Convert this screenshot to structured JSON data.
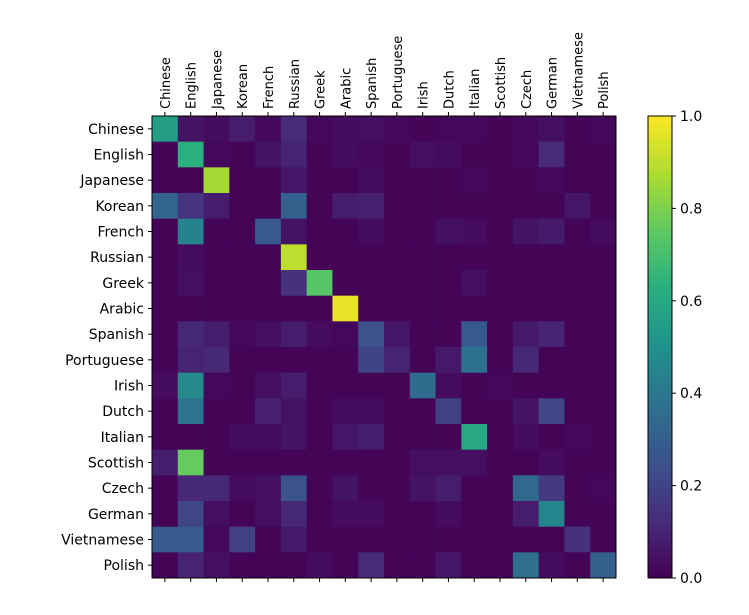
{
  "chart_data": {
    "type": "heatmap",
    "title": "",
    "xlabel": "",
    "ylabel": "",
    "x_labels": [
      "Chinese",
      "English",
      "Japanese",
      "Korean",
      "French",
      "Russian",
      "Greek",
      "Arabic",
      "Spanish",
      "Portuguese",
      "Irish",
      "Dutch",
      "Italian",
      "Scottish",
      "Czech",
      "German",
      "Vietnamese",
      "Polish"
    ],
    "y_labels": [
      "Chinese",
      "English",
      "Japanese",
      "Korean",
      "French",
      "Russian",
      "Greek",
      "Arabic",
      "Spanish",
      "Portuguese",
      "Irish",
      "Dutch",
      "Italian",
      "Scottish",
      "Czech",
      "German",
      "Vietnamese",
      "Polish"
    ],
    "colormap": "viridis",
    "value_range": [
      0,
      1
    ],
    "colorbar_ticks": [
      "0.0",
      "0.2",
      "0.4",
      "0.6",
      "0.8",
      "1.0"
    ],
    "matrix": [
      [
        0.56,
        0.05,
        0.03,
        0.08,
        0.02,
        0.12,
        0.02,
        0.03,
        0.04,
        0.02,
        0.01,
        0.02,
        0.02,
        0.01,
        0.02,
        0.04,
        0.01,
        0.02
      ],
      [
        0.01,
        0.63,
        0.02,
        0.01,
        0.05,
        0.1,
        0.01,
        0.03,
        0.02,
        0.01,
        0.04,
        0.03,
        0.01,
        0.01,
        0.02,
        0.12,
        0.01,
        0.01
      ],
      [
        0.01,
        0.01,
        0.86,
        0.01,
        0.01,
        0.06,
        0.01,
        0.01,
        0.03,
        0.01,
        0.01,
        0.01,
        0.02,
        0.01,
        0.01,
        0.02,
        0.01,
        0.01
      ],
      [
        0.32,
        0.15,
        0.08,
        0.01,
        0.01,
        0.3,
        0.01,
        0.08,
        0.09,
        0.01,
        0.01,
        0.01,
        0.01,
        0.01,
        0.01,
        0.01,
        0.06,
        0.01
      ],
      [
        0.01,
        0.44,
        0.01,
        0.01,
        0.28,
        0.05,
        0.01,
        0.01,
        0.03,
        0.01,
        0.01,
        0.04,
        0.03,
        0.01,
        0.05,
        0.07,
        0.01,
        0.03
      ],
      [
        0.01,
        0.03,
        0.01,
        0.01,
        0.01,
        0.9,
        0.01,
        0.01,
        0.01,
        0.01,
        0.01,
        0.01,
        0.01,
        0.01,
        0.01,
        0.01,
        0.01,
        0.01
      ],
      [
        0.01,
        0.04,
        0.01,
        0.01,
        0.01,
        0.14,
        0.73,
        0.01,
        0.01,
        0.01,
        0.01,
        0.01,
        0.04,
        0.01,
        0.01,
        0.01,
        0.01,
        0.01
      ],
      [
        0.01,
        0.01,
        0.01,
        0.01,
        0.01,
        0.01,
        0.01,
        0.97,
        0.01,
        0.01,
        0.01,
        0.01,
        0.01,
        0.01,
        0.01,
        0.01,
        0.01,
        0.01
      ],
      [
        0.01,
        0.11,
        0.08,
        0.02,
        0.04,
        0.08,
        0.03,
        0.02,
        0.25,
        0.06,
        0.01,
        0.01,
        0.28,
        0.01,
        0.07,
        0.1,
        0.01,
        0.01
      ],
      [
        0.01,
        0.1,
        0.11,
        0.01,
        0.01,
        0.01,
        0.01,
        0.01,
        0.2,
        0.1,
        0.01,
        0.07,
        0.37,
        0.01,
        0.11,
        0.01,
        0.01,
        0.01
      ],
      [
        0.03,
        0.47,
        0.02,
        0.01,
        0.04,
        0.08,
        0.01,
        0.01,
        0.01,
        0.01,
        0.35,
        0.03,
        0.01,
        0.02,
        0.01,
        0.01,
        0.01,
        0.01
      ],
      [
        0.01,
        0.38,
        0.01,
        0.01,
        0.09,
        0.05,
        0.01,
        0.03,
        0.03,
        0.01,
        0.01,
        0.19,
        0.01,
        0.01,
        0.05,
        0.21,
        0.01,
        0.01
      ],
      [
        0.01,
        0.01,
        0.01,
        0.03,
        0.03,
        0.05,
        0.01,
        0.06,
        0.08,
        0.01,
        0.01,
        0.01,
        0.6,
        0.01,
        0.03,
        0.01,
        0.02,
        0.01
      ],
      [
        0.08,
        0.76,
        0.01,
        0.01,
        0.01,
        0.01,
        0.01,
        0.01,
        0.01,
        0.01,
        0.04,
        0.04,
        0.04,
        0.01,
        0.01,
        0.03,
        0.01,
        0.01
      ],
      [
        0.01,
        0.11,
        0.11,
        0.03,
        0.04,
        0.25,
        0.01,
        0.05,
        0.01,
        0.01,
        0.05,
        0.08,
        0.01,
        0.01,
        0.34,
        0.17,
        0.01,
        0.02
      ],
      [
        0.01,
        0.21,
        0.04,
        0.01,
        0.04,
        0.11,
        0.01,
        0.03,
        0.03,
        0.01,
        0.01,
        0.03,
        0.01,
        0.01,
        0.08,
        0.45,
        0.01,
        0.01
      ],
      [
        0.28,
        0.28,
        0.02,
        0.19,
        0.01,
        0.07,
        0.01,
        0.01,
        0.01,
        0.01,
        0.01,
        0.01,
        0.01,
        0.01,
        0.01,
        0.01,
        0.14,
        0.01
      ],
      [
        0.01,
        0.1,
        0.04,
        0.01,
        0.01,
        0.01,
        0.03,
        0.01,
        0.12,
        0.01,
        0.01,
        0.06,
        0.01,
        0.01,
        0.36,
        0.03,
        0.01,
        0.3
      ]
    ]
  }
}
